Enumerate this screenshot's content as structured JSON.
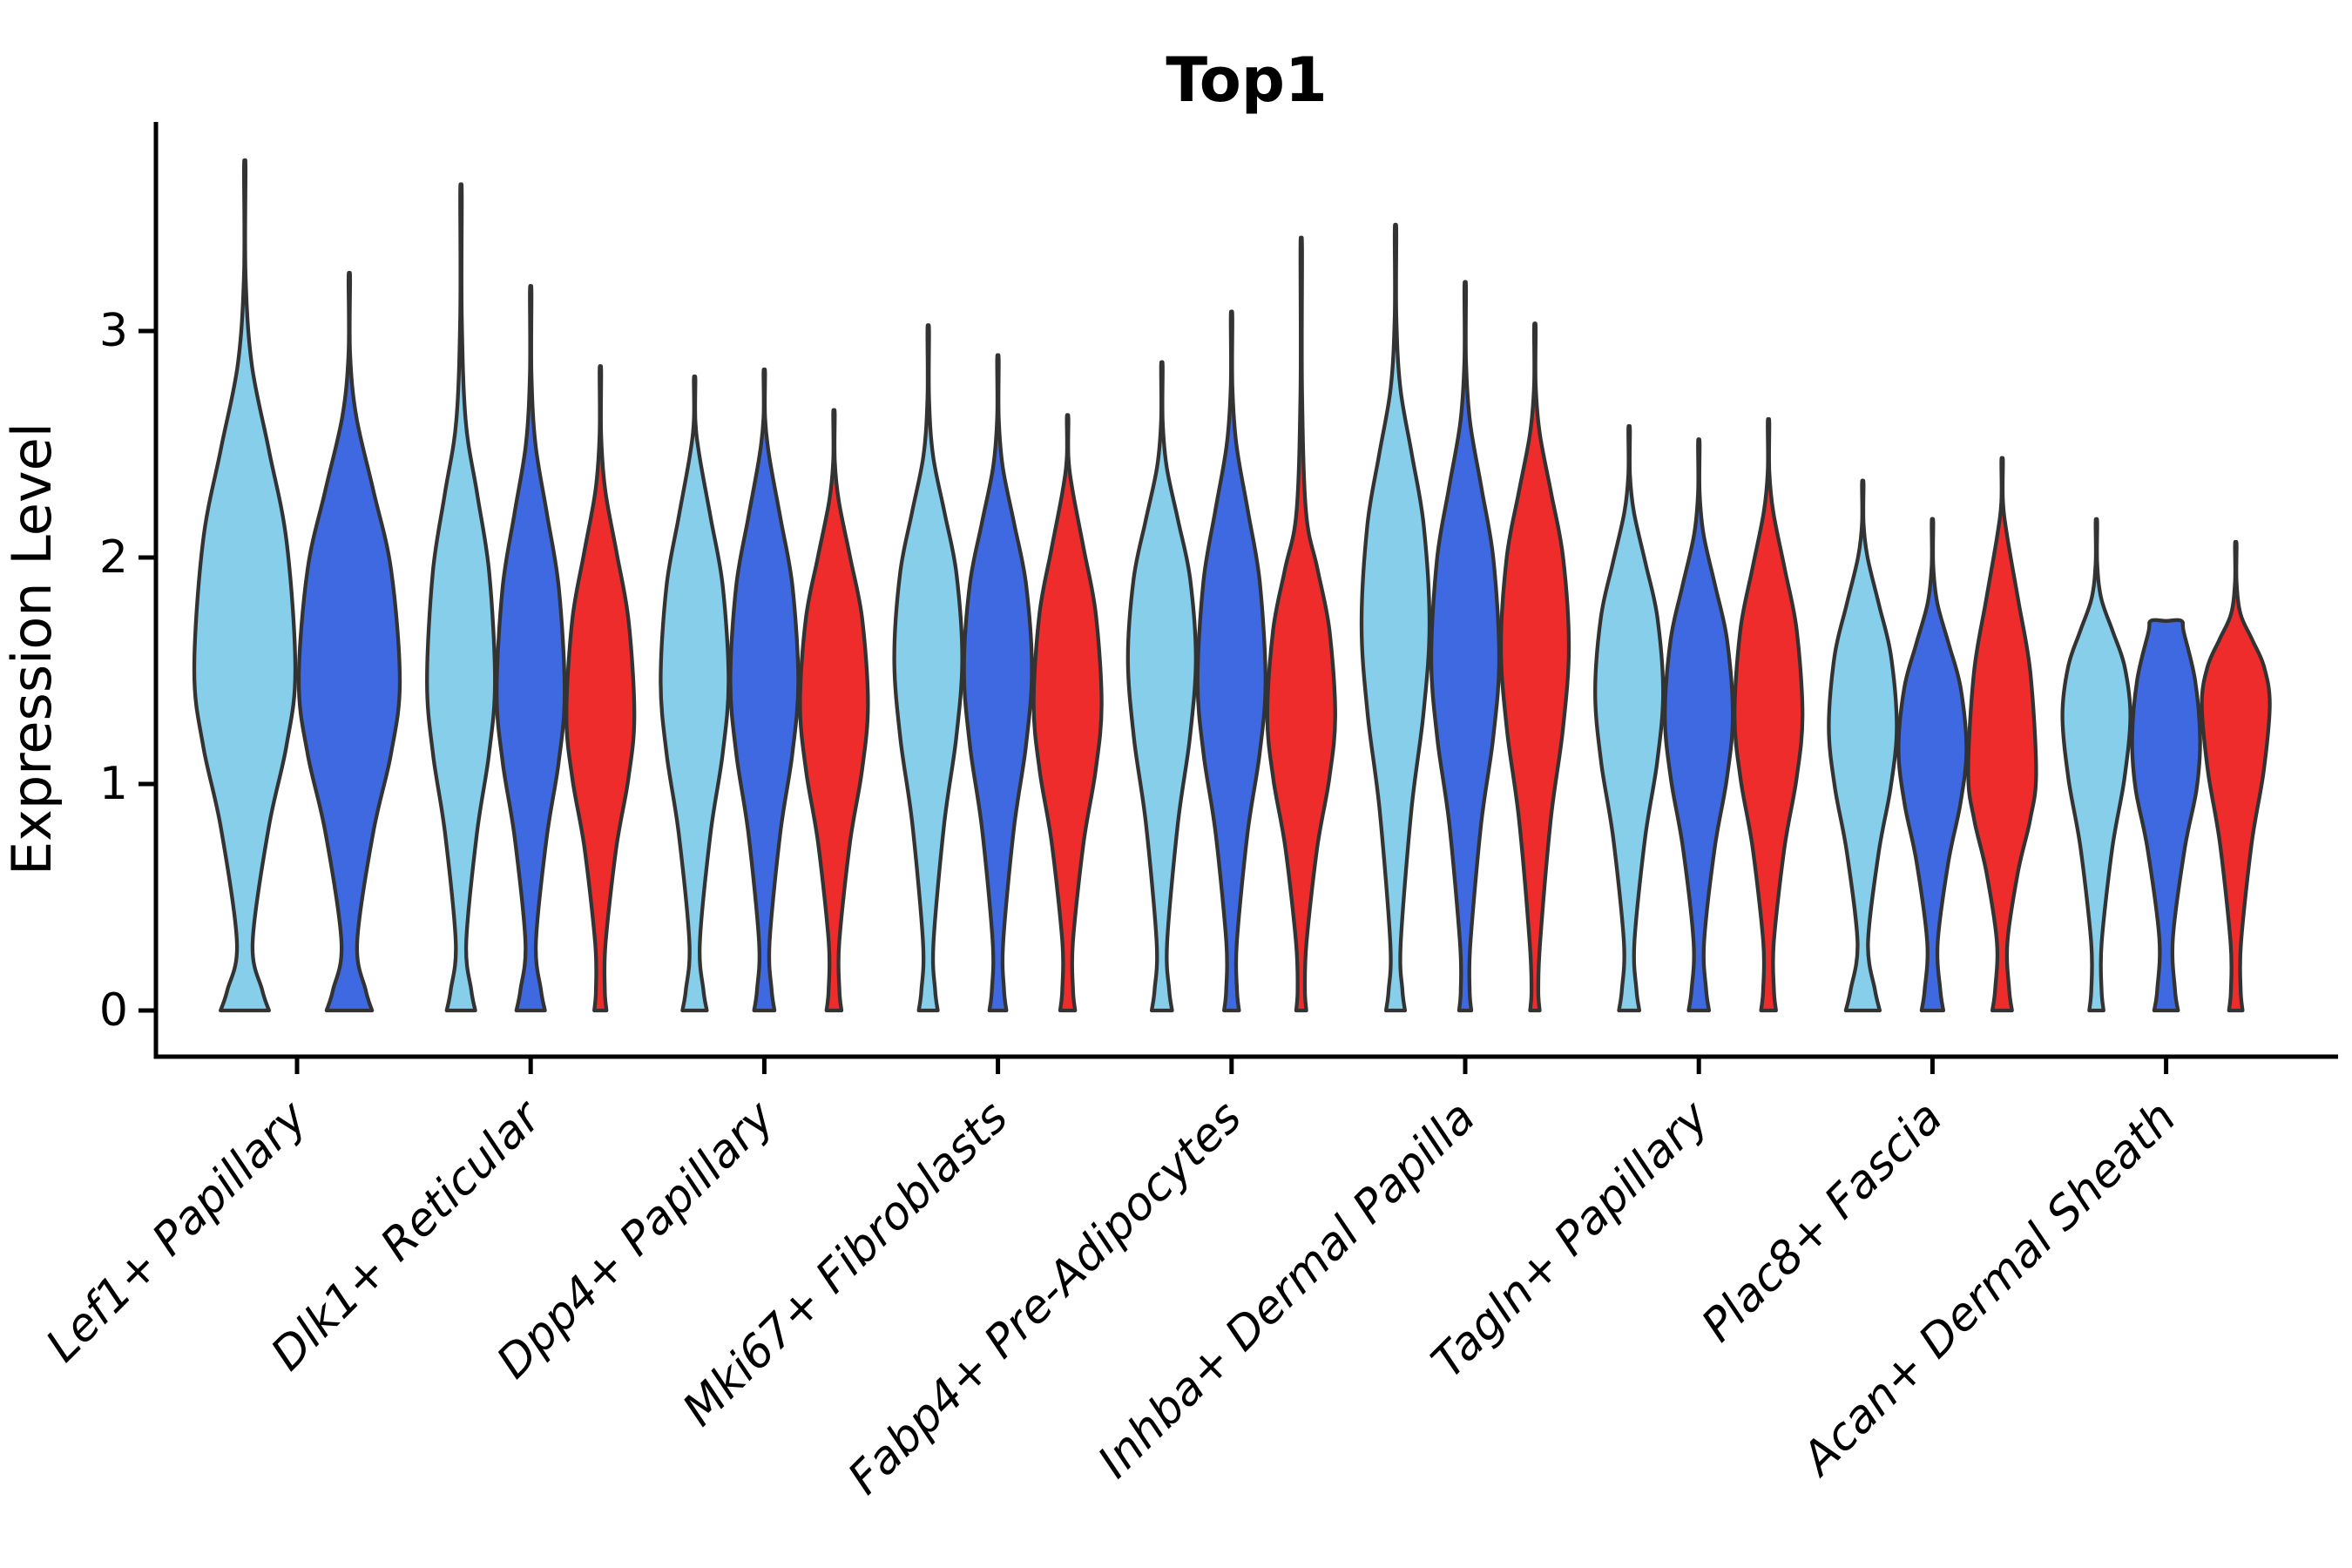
{
  "figure": {
    "title": "Top1",
    "y_axis_label": "Expression Level"
  },
  "chart_data": {
    "type": "violin",
    "title": "Top1",
    "xlabel": "",
    "ylabel": "Expression Level",
    "yticks": [
      0,
      1,
      2,
      3
    ],
    "ylim": [
      -0.2,
      3.92
    ],
    "grid": false,
    "legend_position": "none",
    "background": "#FFFFFF",
    "outline_color": "#333333",
    "axis_color": "#000000",
    "palette": {
      "light_blue": "#87CEEB",
      "dark_blue": "#3F69E1",
      "red": "#EE2C2C"
    },
    "categories": [
      "Lef1+ Papillary",
      "Dlk1+ Reticular",
      "Dpp4+ Papillary",
      "Mki67+ Fibroblasts",
      "Fabp4+ Pre-Adipocytes",
      "Inhba+ Dermal Papilla",
      "Tagln+ Papillary",
      "Plac8+ Fascia",
      "Acan+ Dermal Sheath"
    ],
    "groups": [
      {
        "category": "Lef1+ Papillary",
        "violins": [
          {
            "color": "light_blue",
            "max": 3.73,
            "shoulder": 2.85,
            "mode": 1.5,
            "foot": 0.48
          },
          {
            "color": "dark_blue",
            "max": 3.24,
            "shoulder": 2.62,
            "mode": 1.45,
            "foot": 0.45
          }
        ]
      },
      {
        "category": "Dlk1+ Reticular",
        "violins": [
          {
            "color": "light_blue",
            "max": 3.62,
            "shoulder": 2.6,
            "mode": 1.45,
            "foot": 0.42
          },
          {
            "color": "dark_blue",
            "max": 3.18,
            "shoulder": 2.5,
            "mode": 1.4,
            "foot": 0.42
          },
          {
            "color": "red",
            "max": 2.83,
            "shoulder": 2.3,
            "mode": 1.3,
            "foot": 0.18
          }
        ]
      },
      {
        "category": "Dpp4+ Papillary",
        "violins": [
          {
            "color": "light_blue",
            "max": 2.79,
            "shoulder": 2.45,
            "mode": 1.45,
            "foot": 0.36
          },
          {
            "color": "dark_blue",
            "max": 2.82,
            "shoulder": 2.45,
            "mode": 1.45,
            "foot": 0.3
          },
          {
            "color": "red",
            "max": 2.64,
            "shoulder": 2.25,
            "mode": 1.35,
            "foot": 0.22
          }
        ]
      },
      {
        "category": "Mki67+ Fibroblasts",
        "violins": [
          {
            "color": "light_blue",
            "max": 3.01,
            "shoulder": 2.45,
            "mode": 1.55,
            "foot": 0.28
          },
          {
            "color": "dark_blue",
            "max": 2.88,
            "shoulder": 2.4,
            "mode": 1.5,
            "foot": 0.25
          },
          {
            "color": "red",
            "max": 2.62,
            "shoulder": 2.3,
            "mode": 1.35,
            "foot": 0.22
          }
        ]
      },
      {
        "category": "Fabp4+ Pre-Adipocytes",
        "violins": [
          {
            "color": "light_blue",
            "max": 2.85,
            "shoulder": 2.4,
            "mode": 1.55,
            "foot": 0.3
          },
          {
            "color": "dark_blue",
            "max": 3.07,
            "shoulder": 2.5,
            "mode": 1.45,
            "foot": 0.22
          },
          {
            "color": "red",
            "max": 3.38,
            "shoulder": 2.2,
            "mode": 1.3,
            "foot": 0.15
          }
        ]
      },
      {
        "category": "Inhba+ Dermal Papilla",
        "violins": [
          {
            "color": "light_blue",
            "max": 3.45,
            "shoulder": 2.75,
            "mode": 1.7,
            "foot": 0.28
          },
          {
            "color": "dark_blue",
            "max": 3.2,
            "shoulder": 2.6,
            "mode": 1.55,
            "foot": 0.18
          },
          {
            "color": "red",
            "max": 3.02,
            "shoulder": 2.55,
            "mode": 1.6,
            "foot": 0.14
          }
        ]
      },
      {
        "category": "Tagln+ Papillary",
        "violins": [
          {
            "color": "light_blue",
            "max": 2.57,
            "shoulder": 2.2,
            "mode": 1.4,
            "foot": 0.3
          },
          {
            "color": "dark_blue",
            "max": 2.51,
            "shoulder": 2.1,
            "mode": 1.3,
            "foot": 0.3
          },
          {
            "color": "red",
            "max": 2.6,
            "shoulder": 2.2,
            "mode": 1.3,
            "foot": 0.22
          }
        ]
      },
      {
        "category": "Plac8+ Fascia",
        "violins": [
          {
            "color": "light_blue",
            "max": 2.33,
            "shoulder": 2.0,
            "mode": 1.25,
            "foot": 0.5
          },
          {
            "color": "dark_blue",
            "max": 2.16,
            "shoulder": 1.8,
            "mode": 1.15,
            "foot": 0.32
          },
          {
            "color": "red",
            "max": 2.43,
            "shoulder": 2.1,
            "mode": 1.05,
            "foot": 0.29
          }
        ]
      },
      {
        "category": "Acan+ Dermal Sheath",
        "violins": [
          {
            "color": "light_blue",
            "max": 2.16,
            "shoulder": 1.82,
            "mode": 1.3,
            "foot": 0.21
          },
          {
            "color": "dark_blue",
            "max": 1.72,
            "flat_top": true,
            "top_width": 0.45,
            "mode": 1.2,
            "foot": 0.35
          },
          {
            "color": "red",
            "max": 2.06,
            "shoulder": 1.75,
            "mode": 1.35,
            "foot": 0.2
          }
        ]
      }
    ]
  }
}
